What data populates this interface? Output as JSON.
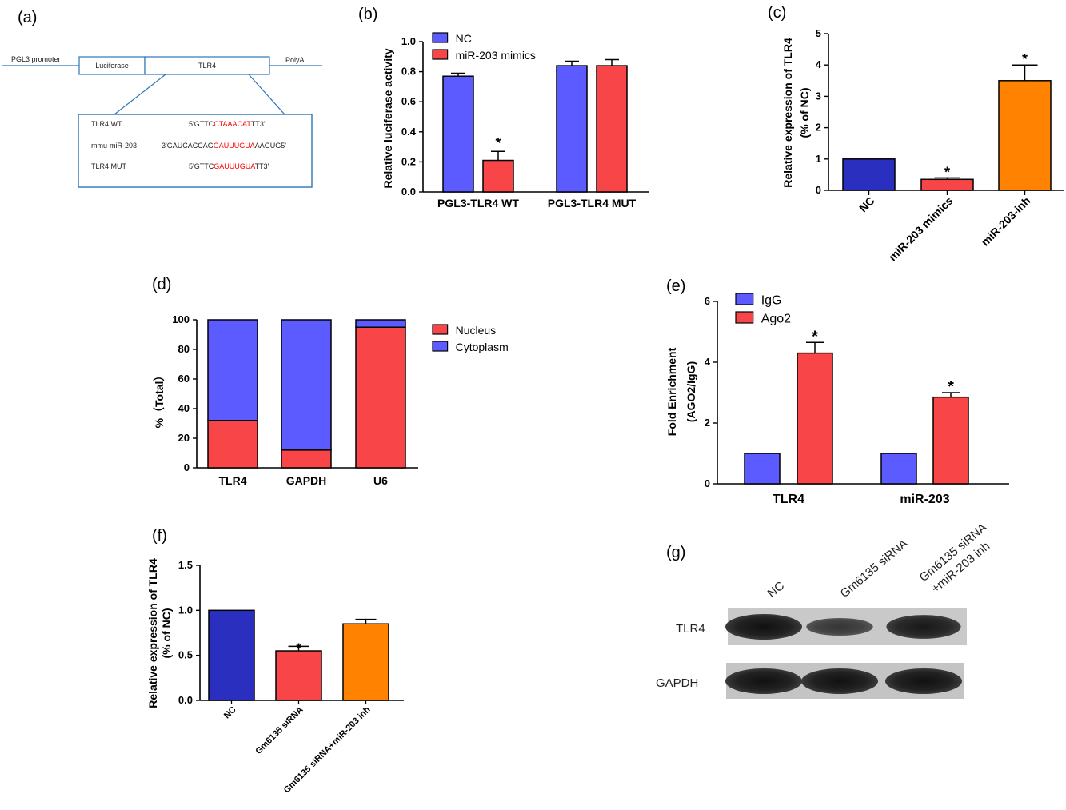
{
  "colors": {
    "blue": "#5b5bff",
    "red": "#f74548",
    "navy": "#2b2fbf",
    "orange": "#ff8200",
    "diagram_line": "#2e75b6",
    "seq_red": "#ff0000"
  },
  "panel_labels": [
    "(a)",
    "(b)",
    "(c)",
    "(d)",
    "(e)",
    "(f)",
    "(g)"
  ],
  "diagram": {
    "promoter": "PGL3 promoter",
    "luciferase": "Luciferase",
    "tlr4": "TLR4",
    "polya": "PolyA",
    "rows": [
      {
        "name": "TLR4 WT",
        "pre": "5'GTTC",
        "red": "CTAAACAT",
        "post": "TT3'"
      },
      {
        "name": "mmu-miR-203",
        "pre": "3'GAUCACCAG",
        "red": "GAUUUGUA",
        "post": "AAGUG5'"
      },
      {
        "name": "TLR4 MUT",
        "pre": "5'GTTC",
        "red": "GAUUUGUA",
        "post": "TT3'"
      }
    ]
  },
  "chart_data": [
    {
      "panel": "(b)",
      "type": "bar",
      "categories": [
        "PGL3-TLR4 WT",
        "PGL3-TLR4 MUT"
      ],
      "series": [
        {
          "name": "NC",
          "values": [
            0.77,
            0.84
          ],
          "errors": [
            0.02,
            0.03
          ],
          "color": "#5b5bff"
        },
        {
          "name": "miR-203 mimics",
          "values": [
            0.21,
            0.84
          ],
          "errors": [
            0.06,
            0.04
          ],
          "color": "#f74548"
        }
      ],
      "significance": [
        "",
        "*",
        "",
        ""
      ],
      "ylabel": "Relative luciferase activity",
      "ylim": [
        0,
        1.0
      ],
      "yticks": [
        "0.0",
        "0.2",
        "0.4",
        "0.6",
        "0.8",
        "1.0"
      ],
      "legend": "top-left"
    },
    {
      "panel": "(c)",
      "type": "bar",
      "categories": [
        "NC",
        "miR-203 mimics",
        "miR-203-inh"
      ],
      "values": [
        1.0,
        0.35,
        3.5
      ],
      "errors": [
        0,
        0.05,
        0.5
      ],
      "colors": [
        "#2b2fbf",
        "#f74548",
        "#ff8200"
      ],
      "significance": [
        "",
        "*",
        "*"
      ],
      "ylabel": "Relative expression of TLR4",
      "ylabel2": "(% of NC)",
      "ylim": [
        0,
        5
      ],
      "yticks": [
        "0",
        "1",
        "2",
        "3",
        "4",
        "5"
      ]
    },
    {
      "panel": "(d)",
      "type": "bar",
      "stacked": true,
      "categories": [
        "TLR4",
        "GAPDH",
        "U6"
      ],
      "series": [
        {
          "name": "Nucleus",
          "values": [
            32,
            12,
            95
          ],
          "color": "#f74548"
        },
        {
          "name": "Cytoplasm",
          "values": [
            68,
            88,
            5
          ],
          "color": "#5b5bff"
        }
      ],
      "ylabel": "%（Total）",
      "ylim": [
        0,
        100
      ],
      "yticks": [
        "0",
        "20",
        "40",
        "60",
        "80",
        "100"
      ],
      "legend": "right"
    },
    {
      "panel": "(e)",
      "type": "bar",
      "categories": [
        "TLR4",
        "miR-203"
      ],
      "series": [
        {
          "name": "IgG",
          "values": [
            1.0,
            1.0
          ],
          "errors": [
            0,
            0
          ],
          "color": "#5b5bff"
        },
        {
          "name": "Ago2",
          "values": [
            4.3,
            2.85
          ],
          "errors": [
            0.35,
            0.15
          ],
          "color": "#f74548"
        }
      ],
      "significance": [
        "",
        "*",
        "",
        "*"
      ],
      "ylabel": "Fold Enrichment",
      "ylabel2": "(AGO2/IgG)",
      "ylim": [
        0,
        6
      ],
      "yticks": [
        "0",
        "2",
        "4",
        "6"
      ],
      "legend": "top-left"
    },
    {
      "panel": "(f)",
      "type": "bar",
      "categories": [
        "NC",
        "Gm6135 siRNA",
        "Gm6135 siRNA+miR-203 inh"
      ],
      "values": [
        1.0,
        0.55,
        0.85
      ],
      "errors": [
        0,
        0.05,
        0.05
      ],
      "colors": [
        "#2b2fbf",
        "#f74548",
        "#ff8200"
      ],
      "significance": [
        "",
        "*",
        ""
      ],
      "ylabel": "Relative expression of TLR4",
      "ylabel2": "(% of NC)",
      "ylim": [
        0,
        1.5
      ],
      "yticks": [
        "0.0",
        "0.5",
        "1.0",
        "1.5"
      ]
    }
  ],
  "blot": {
    "lanes": [
      "NC",
      "Gm6135 siRNA",
      "Gm6135 siRNA",
      "+miR-203 inh"
    ],
    "rows": [
      {
        "label": "TLR4",
        "intensity": [
          1.0,
          0.55,
          0.9
        ]
      },
      {
        "label": "GAPDH",
        "intensity": [
          1.0,
          1.0,
          1.0
        ]
      }
    ]
  }
}
